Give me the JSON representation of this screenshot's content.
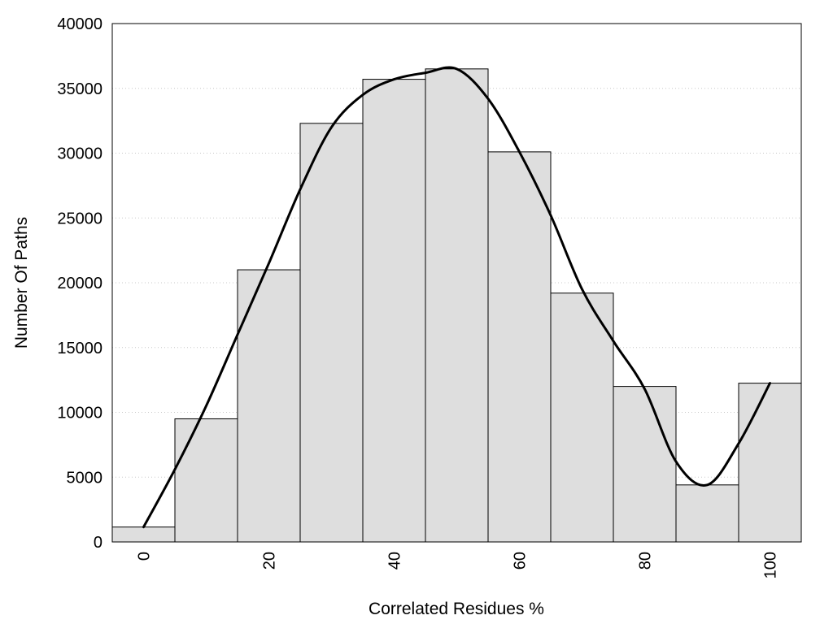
{
  "chart_data": {
    "type": "bar",
    "xlabel": "Correlated Residues %",
    "ylabel": "Number Of Paths",
    "xlim": [
      -10,
      100
    ],
    "ylim": [
      0,
      40000
    ],
    "bin_width": 10,
    "x": [
      0,
      10,
      20,
      30,
      40,
      50,
      60,
      70,
      80,
      90,
      100
    ],
    "values": [
      1150,
      9500,
      21000,
      32300,
      35700,
      36500,
      30100,
      19200,
      12000,
      4400,
      12250
    ],
    "x_ticks": [
      0,
      20,
      40,
      60,
      80,
      100
    ],
    "y_ticks": [
      0,
      5000,
      10000,
      15000,
      20000,
      25000,
      30000,
      35000,
      40000
    ],
    "grid": "horizontal-dotted",
    "bar_color": "#dedede",
    "curve_color": "#000000",
    "curve": {
      "x": [
        0,
        5,
        10,
        15,
        20,
        25,
        30,
        35,
        40,
        45,
        50,
        55,
        60,
        65,
        70,
        75,
        80,
        85,
        90,
        95,
        100
      ],
      "y": [
        1150,
        5600,
        10500,
        16000,
        21500,
        27200,
        32000,
        34500,
        35700,
        36200,
        36500,
        34200,
        30100,
        25200,
        19500,
        15500,
        11800,
        6200,
        4400,
        7600,
        12250
      ]
    }
  }
}
